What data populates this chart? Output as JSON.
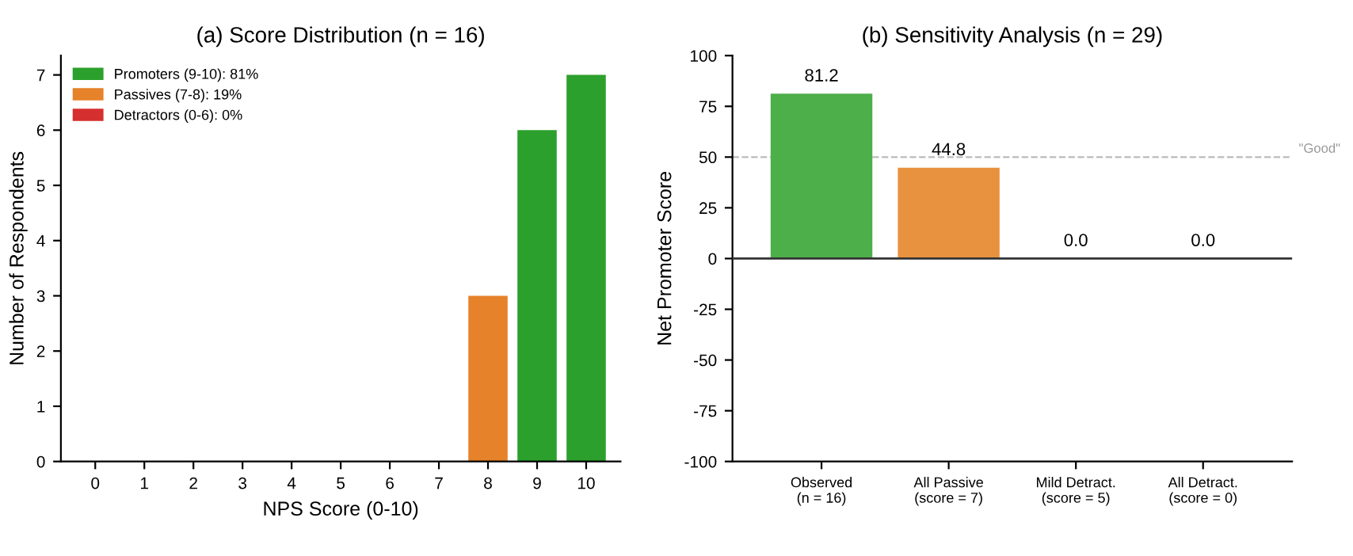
{
  "chart_data": [
    {
      "type": "bar",
      "title": "(a) Score Distribution (n = 16)",
      "xlabel": "NPS Score (0-10)",
      "ylabel": "Number of Respondents",
      "categories": [
        "0",
        "1",
        "2",
        "3",
        "4",
        "5",
        "6",
        "7",
        "8",
        "9",
        "10"
      ],
      "stacked": true,
      "series": [
        {
          "name": "Promoters (9-10): 81%",
          "color": "#2ca02c",
          "values": [
            null,
            null,
            null,
            null,
            null,
            null,
            null,
            null,
            null,
            6,
            7
          ]
        },
        {
          "name": "Passives (7-8): 19%",
          "color": "#e6822a",
          "values": [
            null,
            null,
            null,
            null,
            null,
            null,
            null,
            0,
            3,
            null,
            null
          ]
        },
        {
          "name": "Detractors (0-6): 0%",
          "color": "#d62f2f",
          "values": [
            0,
            0,
            0,
            0,
            0,
            0,
            0,
            null,
            null,
            null,
            null
          ]
        }
      ],
      "ylim": [
        0,
        7.35
      ],
      "yticks": [
        0,
        1,
        2,
        3,
        4,
        5,
        6,
        7
      ],
      "grid": false,
      "legend": "top left"
    },
    {
      "type": "bar",
      "title": "(b) Sensitivity Analysis (n = 29)",
      "ylabel": "Net Promoter Score",
      "categories": [
        "Observed\n(n = 16)",
        "All Passive\n(score = 7)",
        "Mild Detract.\n(score = 5)",
        "All Detract.\n(score = 0)"
      ],
      "values": [
        81.2,
        44.8,
        0.0,
        0.0
      ],
      "colors": [
        "#4daf4a",
        "#e8923f",
        "#d62f2f",
        "#d62f2f"
      ],
      "value_labels": [
        "81.2",
        "44.8",
        "0.0",
        "0.0"
      ],
      "ylim": [
        -100,
        100
      ],
      "yticks": [
        -100,
        -75,
        -50,
        -25,
        0,
        25,
        50,
        75,
        100
      ],
      "grid": false,
      "ref_lines": [
        {
          "axis": "y",
          "value": 50,
          "label": "\"Good\"",
          "color": "#bbbbbb",
          "line_style": "dashed"
        },
        {
          "axis": "y",
          "value": 0,
          "color": "#333333",
          "line_style": "solid"
        }
      ]
    }
  ]
}
